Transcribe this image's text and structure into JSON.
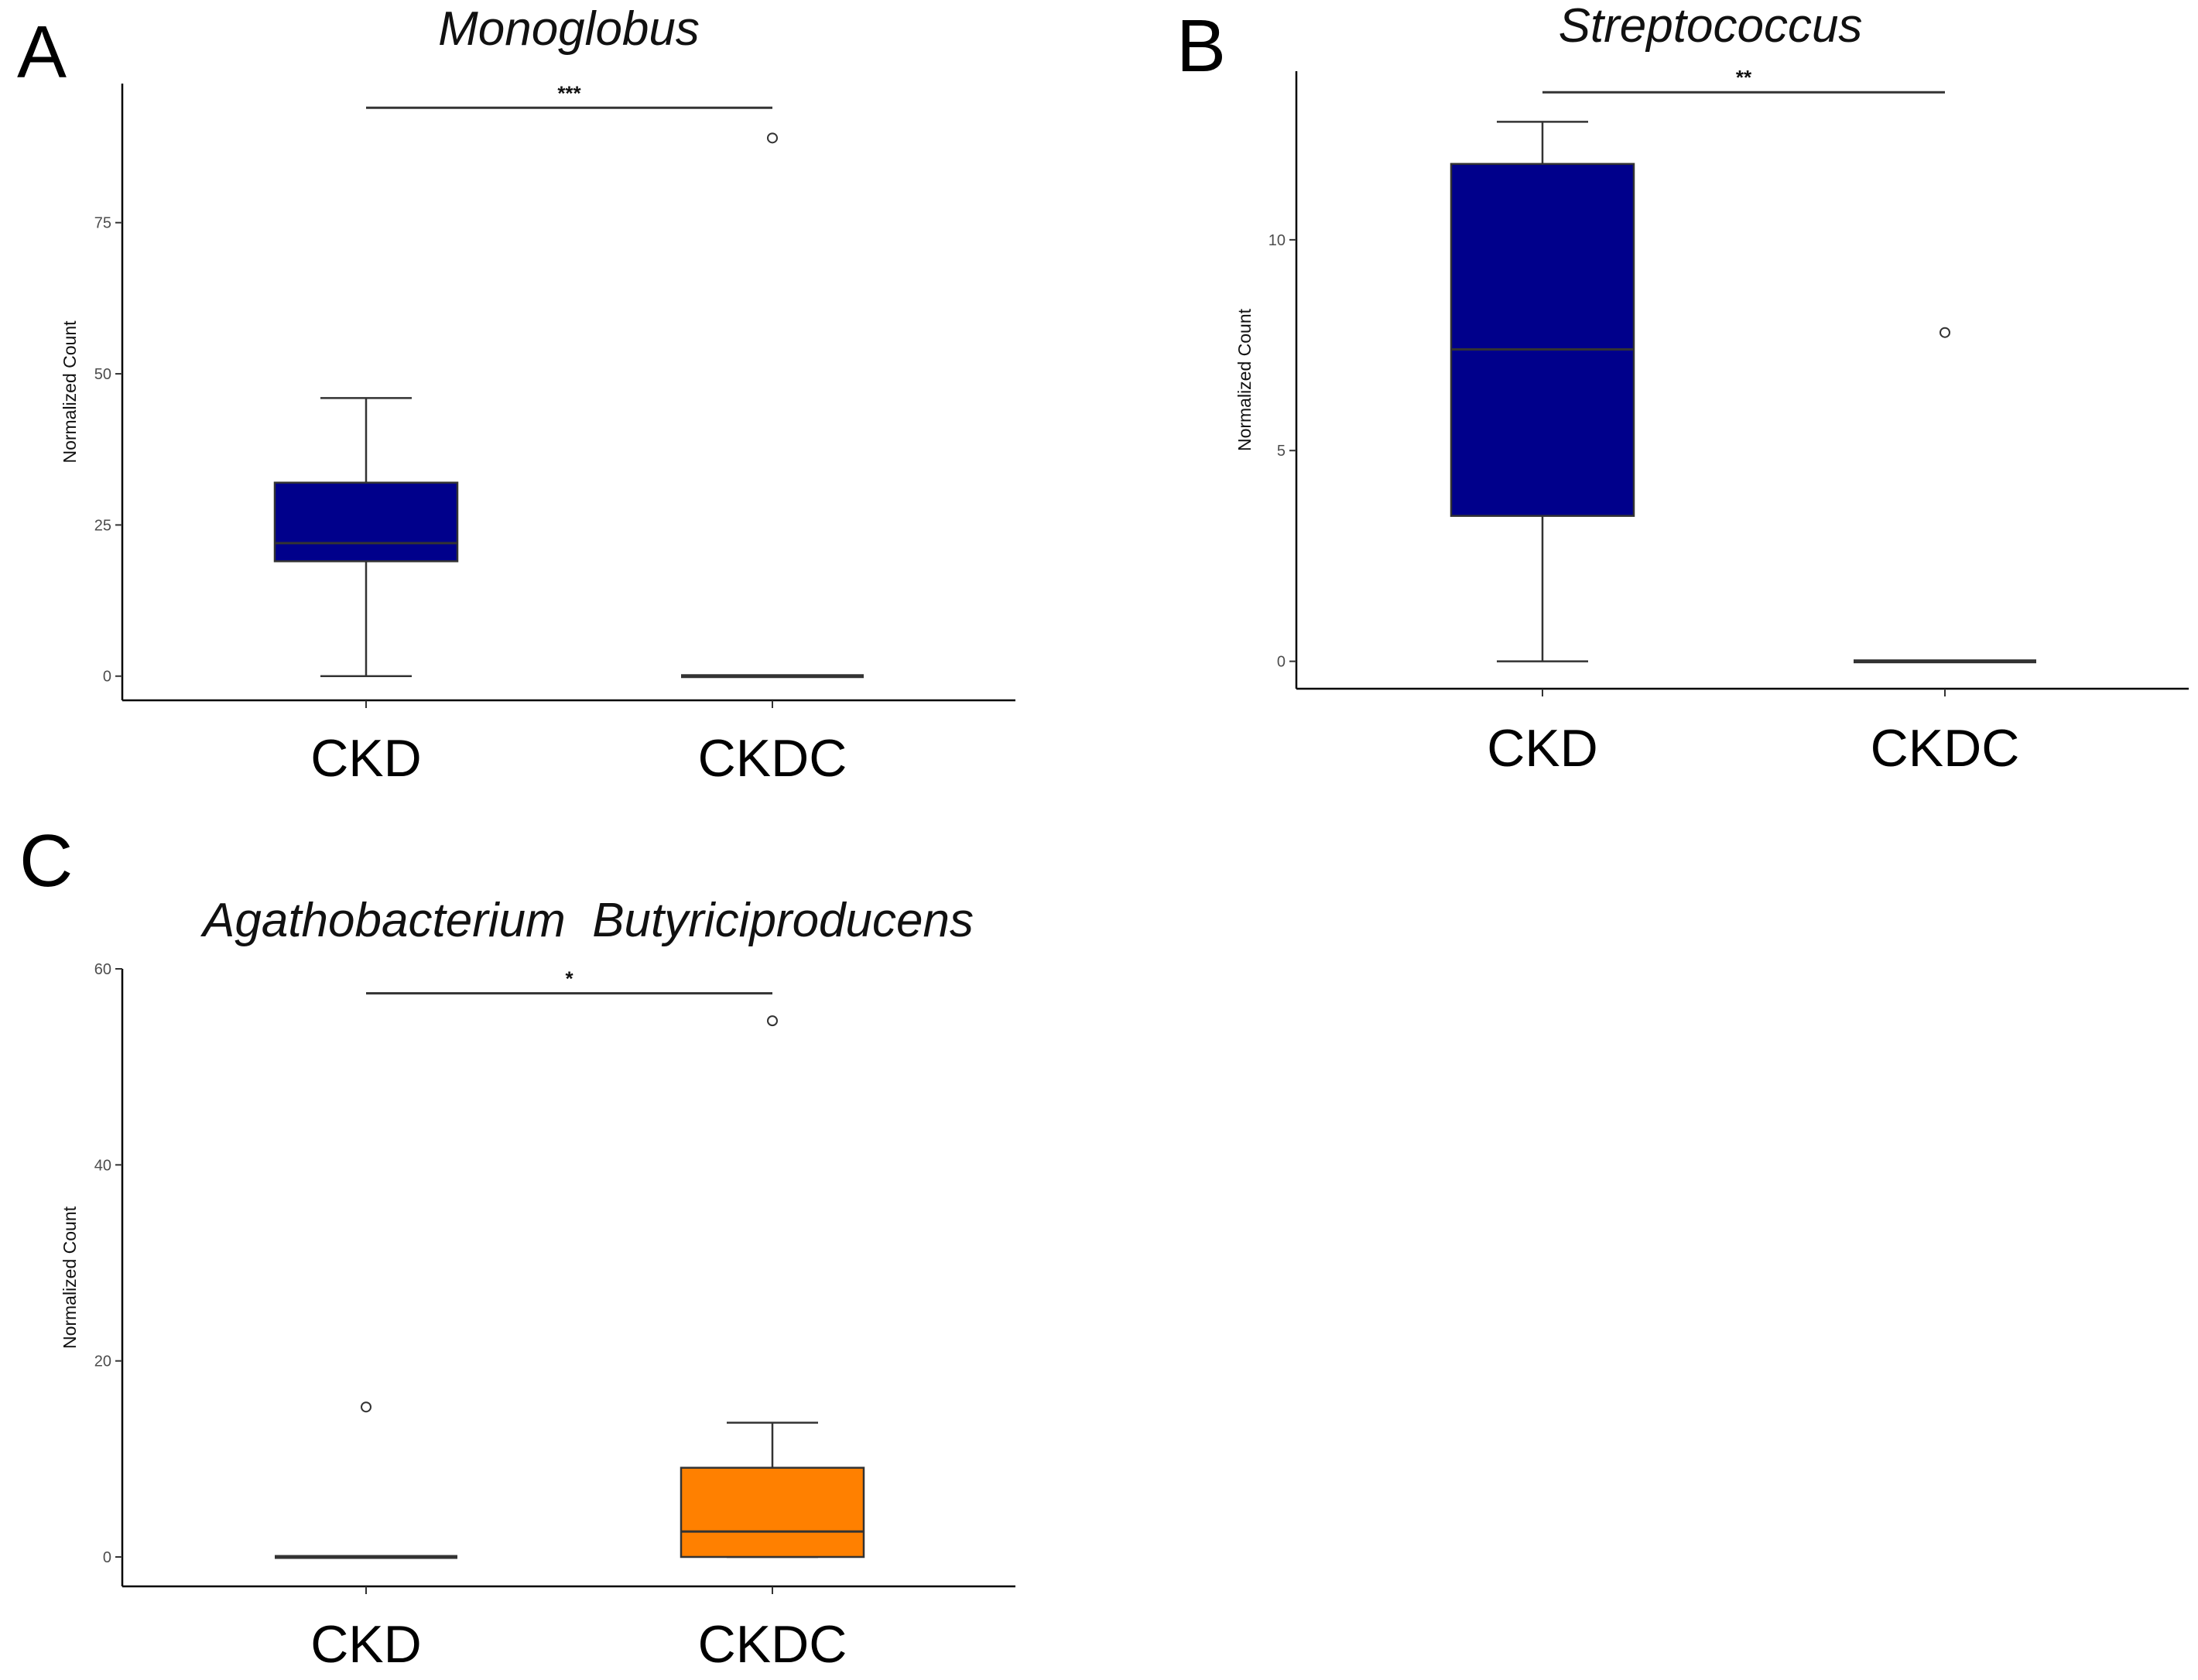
{
  "chart_data": [
    {
      "type": "box",
      "panel": "A",
      "title": "Monoglobus",
      "ylabel": "Normalized Count",
      "xlabel": "",
      "ylim": [
        -4,
        98
      ],
      "yticks": [
        0,
        25,
        50,
        75
      ],
      "categories": [
        "CKD",
        "CKDC"
      ],
      "boxes": [
        {
          "name": "CKD",
          "min": 0,
          "q1": 19,
          "median": 22,
          "q3": 32,
          "max": 46,
          "color": "#00008b",
          "outliers": []
        },
        {
          "name": "CKDC",
          "min": 0,
          "q1": 0,
          "median": 0,
          "q3": 0,
          "max": 0,
          "color": "#ff8000",
          "outliers": [
            89
          ]
        }
      ],
      "significance": {
        "label": "***",
        "y": 94
      },
      "grid": false
    },
    {
      "type": "box",
      "panel": "B",
      "title": "Streptococcus",
      "ylabel": "Normalized Count",
      "xlabel": "",
      "ylim": [
        -0.65,
        14
      ],
      "yticks": [
        0,
        5,
        10
      ],
      "categories": [
        "CKD",
        "CKDC"
      ],
      "boxes": [
        {
          "name": "CKD",
          "min": 0,
          "q1": 3.45,
          "median": 7.4,
          "q3": 11.8,
          "max": 12.8,
          "color": "#00008b",
          "outliers": []
        },
        {
          "name": "CKDC",
          "min": 0,
          "q1": 0,
          "median": 0,
          "q3": 0,
          "max": 0,
          "color": "#ff8000",
          "outliers": [
            7.8
          ]
        }
      ],
      "significance": {
        "label": "**",
        "y": 13.5
      },
      "grid": false
    },
    {
      "type": "box",
      "panel": "C",
      "title": "Agathobacterium  Butyriciproducens",
      "ylabel": "Normalized Count",
      "xlabel": "",
      "ylim": [
        -3,
        60
      ],
      "yticks": [
        0,
        20,
        40,
        60
      ],
      "categories": [
        "CKD",
        "CKDC"
      ],
      "boxes": [
        {
          "name": "CKD",
          "min": 0,
          "q1": 0,
          "median": 0,
          "q3": 0,
          "max": 0,
          "color": "#00008b",
          "outliers": [
            15.3
          ]
        },
        {
          "name": "CKDC",
          "min": 0,
          "q1": 0,
          "median": 2.6,
          "q3": 9.1,
          "max": 13.7,
          "color": "#ff8000",
          "outliers": [
            54.7
          ]
        }
      ],
      "significance": {
        "label": "*",
        "y": 57.5
      },
      "grid": false
    }
  ]
}
